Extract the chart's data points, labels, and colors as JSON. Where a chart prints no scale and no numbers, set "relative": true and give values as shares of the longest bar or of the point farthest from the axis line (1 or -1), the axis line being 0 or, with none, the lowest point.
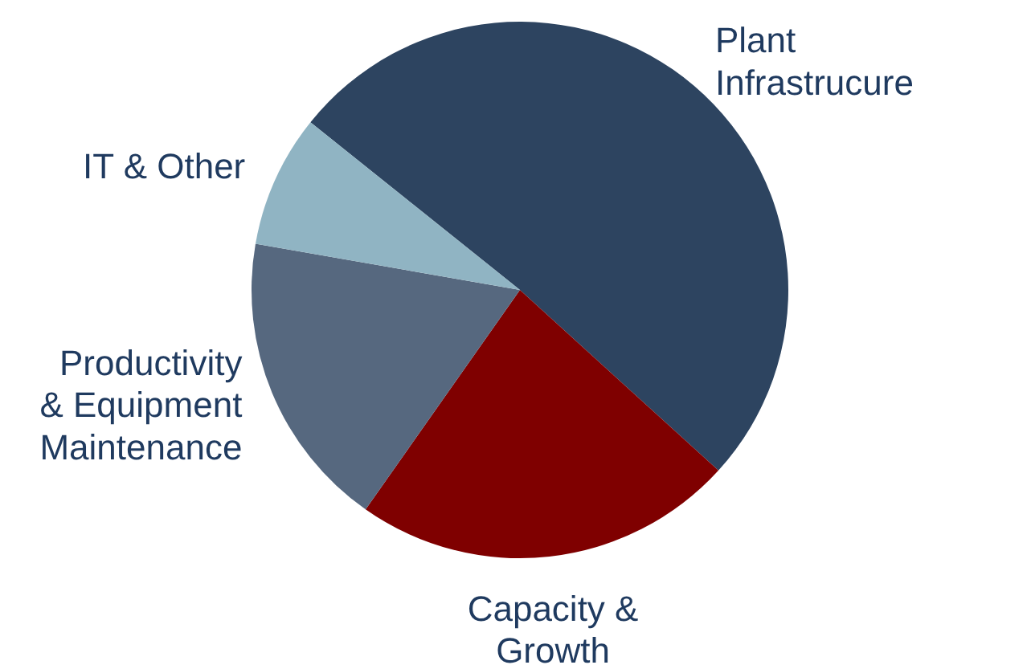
{
  "chart_data": {
    "type": "pie",
    "relative": true,
    "categories": [
      "Plant\nInfrastrucure",
      "Capacity &\nGrowth",
      "Productivity\n& Equipment\nMaintenance",
      "IT & Other"
    ],
    "values": [
      51,
      23,
      18,
      8
    ],
    "colors": [
      "#2d4460",
      "#7f0000",
      "#56687f",
      "#90b4c3"
    ]
  }
}
